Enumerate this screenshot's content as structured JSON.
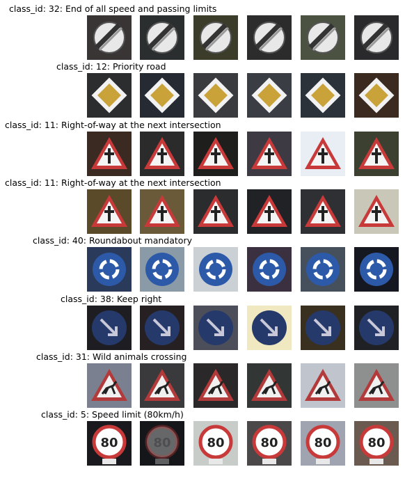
{
  "rows": [
    {
      "title": "class_id: 32: End of all speed and passing limits",
      "sign": "end-limits-sign",
      "bgs": [
        "#3a3535",
        "#2b2e2f",
        "#3b3c2a",
        "#2d2c2c",
        "#4c5242",
        "#2a2a2c"
      ]
    },
    {
      "title": "class_id: 12: Priority road",
      "sign": "priority-road-sign",
      "bgs": [
        "#2b2d2f",
        "#252a33",
        "#3a3b3e",
        "#3a3d44",
        "#2b323a",
        "#3a2a20"
      ]
    },
    {
      "title": "class_id: 11: Right-of-way at the next intersection",
      "sign": "right-of-way-sign",
      "bgs": [
        "#3a2a22",
        "#2b2b2b",
        "#1e1f1c",
        "#3e3a44",
        "#e9eef5",
        "#3b4030"
      ]
    },
    {
      "title": "class_id: 11: Right-of-way at the next intersection",
      "sign": "right-of-way-sign",
      "bgs": [
        "#5a4a2a",
        "#6a5a3a",
        "#2a2c2e",
        "#202226",
        "#2f3034",
        "#c9c8b8"
      ]
    },
    {
      "title": "class_id: 40: Roundabout mandatory",
      "sign": "roundabout-sign",
      "bgs": [
        "#2a3a5a",
        "#8a9aa6",
        "#cbd0d5",
        "#3a3040",
        "#45505c",
        "#151820"
      ]
    },
    {
      "title": "class_id: 38: Keep right",
      "sign": "keep-right-sign",
      "bgs": [
        "#1e1e22",
        "#262022",
        "#4c4e5a",
        "#f0e8c0",
        "#3a3020",
        "#202124"
      ]
    },
    {
      "title": "class_id: 31: Wild animals crossing",
      "sign": "wild-animals-sign",
      "bgs": [
        "#7a8090",
        "#3a3a3c",
        "#2a2828",
        "#323634",
        "#c0c4cc",
        "#8e9090"
      ]
    },
    {
      "title": "class_id: 5: Speed limit (80km/h)",
      "sign": "speed-limit-80-sign",
      "bgs": [
        "#1a1a1e",
        "#15161a",
        "#c8ccc8",
        "#4a4848",
        "#a0a4b0",
        "#6a5a50"
      ]
    }
  ],
  "speed_limit_text": "80"
}
